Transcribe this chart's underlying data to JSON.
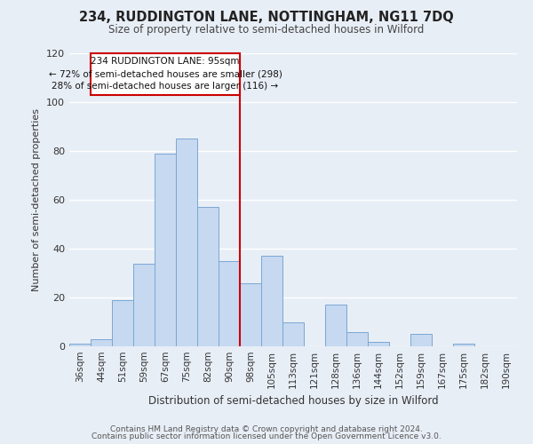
{
  "title": "234, RUDDINGTON LANE, NOTTINGHAM, NG11 7DQ",
  "subtitle": "Size of property relative to semi-detached houses in Wilford",
  "xlabel": "Distribution of semi-detached houses by size in Wilford",
  "ylabel": "Number of semi-detached properties",
  "categories": [
    "36sqm",
    "44sqm",
    "51sqm",
    "59sqm",
    "67sqm",
    "75sqm",
    "82sqm",
    "90sqm",
    "98sqm",
    "105sqm",
    "113sqm",
    "121sqm",
    "128sqm",
    "136sqm",
    "144sqm",
    "152sqm",
    "159sqm",
    "167sqm",
    "175sqm",
    "182sqm",
    "190sqm"
  ],
  "values": [
    1,
    3,
    19,
    34,
    79,
    85,
    57,
    35,
    26,
    37,
    10,
    0,
    17,
    6,
    2,
    0,
    5,
    0,
    1,
    0,
    0
  ],
  "bar_color": "#c6d9f0",
  "bar_edge_color": "#7ba7d4",
  "background_color": "#e8eef6",
  "grid_color": "#ffffff",
  "property_label": "234 RUDDINGTON LANE: 95sqm",
  "pct_smaller": "72% of semi-detached houses are smaller (298)",
  "pct_larger": "28% of semi-detached houses are larger (116)",
  "annotation_box_color": "#cc0000",
  "ylim": [
    0,
    120
  ],
  "yticks": [
    0,
    20,
    40,
    60,
    80,
    100,
    120
  ],
  "footer1": "Contains HM Land Registry data © Crown copyright and database right 2024.",
  "footer2": "Contains public sector information licensed under the Open Government Licence v3.0."
}
